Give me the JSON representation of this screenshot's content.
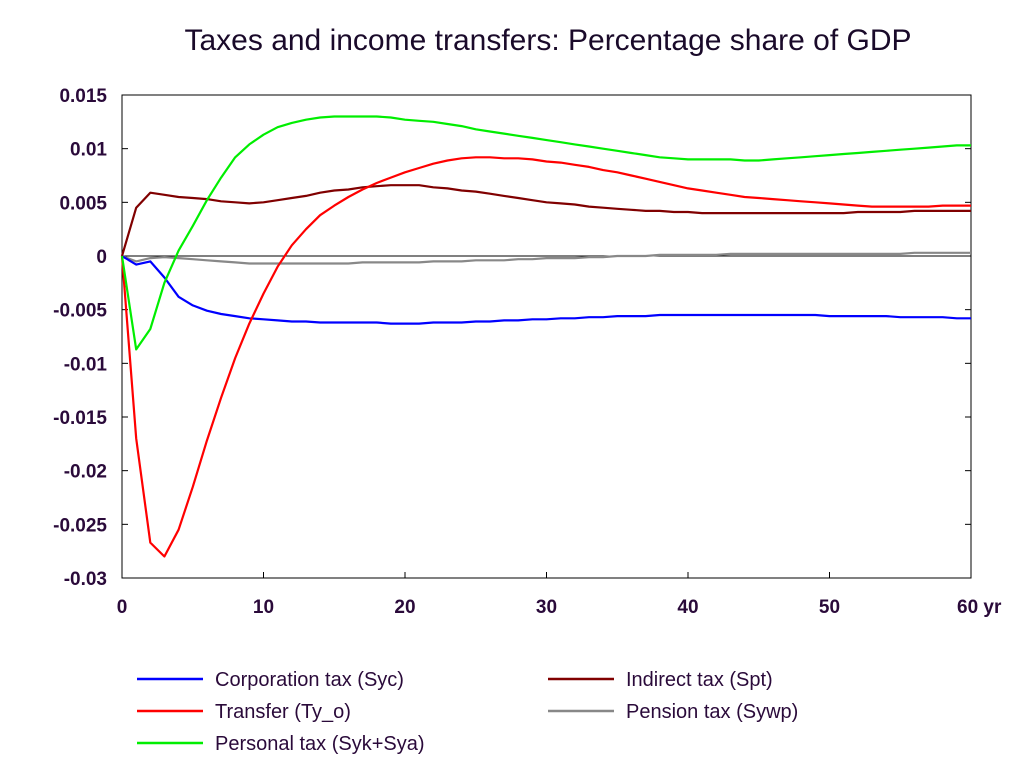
{
  "chart_data": {
    "type": "line",
    "title": "Taxes and income transfers: Percentage share of GDP",
    "xlabel": "",
    "ylabel": "",
    "x_unit": "yr",
    "xlim": [
      0,
      60
    ],
    "ylim": [
      -0.03,
      0.015
    ],
    "x_ticks": [
      0,
      10,
      20,
      30,
      40,
      50,
      60
    ],
    "x_tick_labels": [
      "0",
      "10",
      "20",
      "30",
      "40",
      "50",
      "60 yr"
    ],
    "y_ticks": [
      0.015,
      0.01,
      0.005,
      0,
      -0.005,
      -0.01,
      -0.015,
      -0.02,
      -0.025,
      -0.03
    ],
    "y_tick_labels": [
      "0.015",
      "0.01",
      "0.005",
      "0",
      "-0.005",
      "-0.01",
      "-0.015",
      "-0.02",
      "-0.025",
      "-0.03"
    ],
    "grid": false,
    "zero_line": true,
    "legend_position": "bottom",
    "x": [
      0,
      1,
      2,
      3,
      4,
      5,
      6,
      7,
      8,
      9,
      10,
      11,
      12,
      13,
      14,
      15,
      16,
      17,
      18,
      19,
      20,
      21,
      22,
      23,
      24,
      25,
      26,
      27,
      28,
      29,
      30,
      31,
      32,
      33,
      34,
      35,
      36,
      37,
      38,
      39,
      40,
      41,
      42,
      43,
      44,
      45,
      46,
      47,
      48,
      49,
      50,
      51,
      52,
      53,
      54,
      55,
      56,
      57,
      58,
      59,
      60
    ],
    "series": [
      {
        "name": "Corporation tax (Syc)",
        "color": "#0000ff",
        "values": [
          0,
          -0.0008,
          -0.0005,
          -0.002,
          -0.0038,
          -0.0046,
          -0.0051,
          -0.0054,
          -0.0056,
          -0.0058,
          -0.0059,
          -0.006,
          -0.0061,
          -0.0061,
          -0.0062,
          -0.0062,
          -0.0062,
          -0.0062,
          -0.0062,
          -0.0063,
          -0.0063,
          -0.0063,
          -0.0062,
          -0.0062,
          -0.0062,
          -0.0061,
          -0.0061,
          -0.006,
          -0.006,
          -0.0059,
          -0.0059,
          -0.0058,
          -0.0058,
          -0.0057,
          -0.0057,
          -0.0056,
          -0.0056,
          -0.0056,
          -0.0055,
          -0.0055,
          -0.0055,
          -0.0055,
          -0.0055,
          -0.0055,
          -0.0055,
          -0.0055,
          -0.0055,
          -0.0055,
          -0.0055,
          -0.0055,
          -0.0056,
          -0.0056,
          -0.0056,
          -0.0056,
          -0.0056,
          -0.0057,
          -0.0057,
          -0.0057,
          -0.0057,
          -0.0058,
          -0.0058
        ]
      },
      {
        "name": "Transfer (Ty_o)",
        "color": "#ff0000",
        "values": [
          0,
          -0.017,
          -0.0267,
          -0.028,
          -0.0255,
          -0.0215,
          -0.0172,
          -0.0132,
          -0.0095,
          -0.0063,
          -0.0035,
          -0.001,
          0.001,
          0.0025,
          0.0038,
          0.0047,
          0.0055,
          0.0062,
          0.0068,
          0.0073,
          0.0078,
          0.0082,
          0.0086,
          0.0089,
          0.0091,
          0.0092,
          0.0092,
          0.0091,
          0.0091,
          0.009,
          0.0088,
          0.0087,
          0.0085,
          0.0083,
          0.008,
          0.0078,
          0.0075,
          0.0072,
          0.0069,
          0.0066,
          0.0063,
          0.0061,
          0.0059,
          0.0057,
          0.0055,
          0.0054,
          0.0053,
          0.0052,
          0.0051,
          0.005,
          0.0049,
          0.0048,
          0.0047,
          0.0046,
          0.0046,
          0.0046,
          0.0046,
          0.0046,
          0.0047,
          0.0047,
          0.0047
        ]
      },
      {
        "name": "Personal tax (Syk+Sya)",
        "color": "#00ee00",
        "values": [
          0,
          -0.0087,
          -0.0068,
          -0.0025,
          0.0005,
          0.0028,
          0.0052,
          0.0073,
          0.0092,
          0.0104,
          0.0113,
          0.012,
          0.0124,
          0.0127,
          0.0129,
          0.013,
          0.013,
          0.013,
          0.013,
          0.0129,
          0.0127,
          0.0126,
          0.0125,
          0.0123,
          0.0121,
          0.0118,
          0.0116,
          0.0114,
          0.0112,
          0.011,
          0.0108,
          0.0106,
          0.0104,
          0.0102,
          0.01,
          0.0098,
          0.0096,
          0.0094,
          0.0092,
          0.0091,
          0.009,
          0.009,
          0.009,
          0.009,
          0.0089,
          0.0089,
          0.009,
          0.0091,
          0.0092,
          0.0093,
          0.0094,
          0.0095,
          0.0096,
          0.0097,
          0.0098,
          0.0099,
          0.01,
          0.0101,
          0.0102,
          0.0103,
          0.0103
        ]
      },
      {
        "name": "Indirect tax (Spt)",
        "color": "#800000",
        "values": [
          0,
          0.0045,
          0.0059,
          0.0057,
          0.0055,
          0.0054,
          0.0053,
          0.0051,
          0.005,
          0.0049,
          0.005,
          0.0052,
          0.0054,
          0.0056,
          0.0059,
          0.0061,
          0.0062,
          0.0064,
          0.0065,
          0.0066,
          0.0066,
          0.0066,
          0.0064,
          0.0063,
          0.0061,
          0.006,
          0.0058,
          0.0056,
          0.0054,
          0.0052,
          0.005,
          0.0049,
          0.0048,
          0.0046,
          0.0045,
          0.0044,
          0.0043,
          0.0042,
          0.0042,
          0.0041,
          0.0041,
          0.004,
          0.004,
          0.004,
          0.004,
          0.004,
          0.004,
          0.004,
          0.004,
          0.004,
          0.004,
          0.004,
          0.0041,
          0.0041,
          0.0041,
          0.0041,
          0.0042,
          0.0042,
          0.0042,
          0.0042,
          0.0042
        ]
      },
      {
        "name": "Pension tax (Sywp)",
        "color": "#888888",
        "values": [
          0,
          -0.0005,
          -0.0002,
          -0.0001,
          -0.0002,
          -0.0003,
          -0.0004,
          -0.0005,
          -0.0006,
          -0.0007,
          -0.0007,
          -0.0007,
          -0.0007,
          -0.0007,
          -0.0007,
          -0.0007,
          -0.0007,
          -0.0006,
          -0.0006,
          -0.0006,
          -0.0006,
          -0.0006,
          -0.0005,
          -0.0005,
          -0.0005,
          -0.0004,
          -0.0004,
          -0.0004,
          -0.0003,
          -0.0003,
          -0.0002,
          -0.0002,
          -0.0002,
          -0.0001,
          -0.0001,
          0,
          0,
          0,
          0.0001,
          0.0001,
          0.0001,
          0.0001,
          0.0001,
          0.0002,
          0.0002,
          0.0002,
          0.0002,
          0.0002,
          0.0002,
          0.0002,
          0.0002,
          0.0002,
          0.0002,
          0.0002,
          0.0002,
          0.0002,
          0.0003,
          0.0003,
          0.0003,
          0.0003,
          0.0003
        ]
      }
    ],
    "legend_layout": [
      {
        "series": 0,
        "column": 0,
        "row": 0
      },
      {
        "series": 3,
        "column": 1,
        "row": 0
      },
      {
        "series": 1,
        "column": 0,
        "row": 1
      },
      {
        "series": 4,
        "column": 1,
        "row": 1
      },
      {
        "series": 2,
        "column": 0,
        "row": 2
      }
    ]
  }
}
